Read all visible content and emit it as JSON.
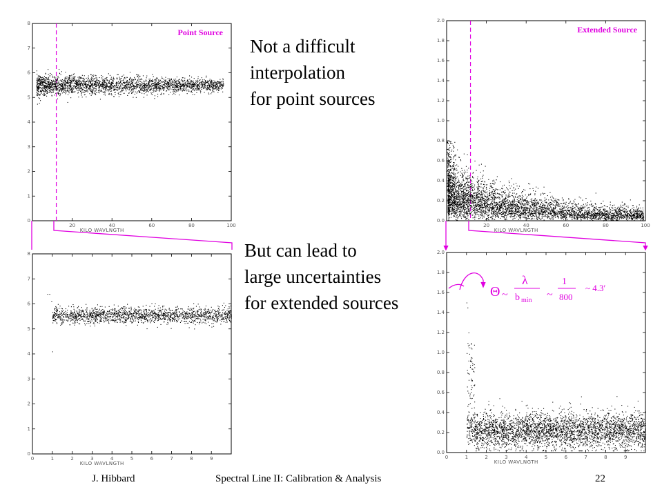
{
  "slide": {
    "text_top": [
      "Not a difficult",
      "interpolation",
      "for point sources"
    ],
    "text_bottom": [
      "But can lead to",
      "large uncertainties",
      "for extended sources"
    ]
  },
  "footer": {
    "author": "J. Hibbard",
    "title": "Spectral Line II: Calibration & Analysis",
    "page": "22"
  },
  "formula": {
    "theta": "Θ",
    "approx1": "~",
    "lambda": "λ",
    "bmin": "b",
    "bmin_sub": "min",
    "approx2": "~",
    "num": "1",
    "den": "800",
    "result": "~ 4.3′"
  },
  "colors": {
    "accent": "#e000e0",
    "points": "#000000"
  },
  "chart_data": [
    {
      "type": "scatter",
      "title": "Point Source",
      "xlabel": "KILO WAVLNGTH",
      "xticks": [
        "20",
        "40",
        "60",
        "80",
        "100"
      ],
      "yticks": [
        "0",
        "1",
        "2",
        "3",
        "4",
        "5",
        "6",
        "7",
        "8"
      ],
      "xlim": [
        0,
        100
      ],
      "ylim": [
        0,
        8
      ],
      "band": {
        "x": [
          2,
          96
        ],
        "center": 5.5,
        "spread": 0.22,
        "spread_end": 0.12
      },
      "marker_x": 12
    },
    {
      "type": "scatter",
      "title": "Extended Source",
      "xlabel": "KILO WAVLNGTH",
      "xticks": [
        "20",
        "40",
        "60",
        "80",
        "100"
      ],
      "yticks": [
        "0.0",
        "0.2",
        "0.4",
        "0.6",
        "0.8",
        "1.0",
        "1.2",
        "1.4",
        "1.6",
        "1.8",
        "2.0"
      ],
      "xlim": [
        0,
        100
      ],
      "ylim": [
        0,
        2
      ],
      "band": {
        "x": [
          0.5,
          99
        ],
        "peak": 0.35,
        "tail": 0.06,
        "decay": 40
      },
      "marker_x": 12
    },
    {
      "type": "scatter",
      "title": "",
      "xlabel": "KILO WAVLNGTH",
      "xticks": [
        "0",
        "1",
        "2",
        "3",
        "4",
        "5",
        "6",
        "7",
        "8",
        "9"
      ],
      "yticks": [
        "0",
        "1",
        "2",
        "3",
        "4",
        "5",
        "6",
        "7",
        "8"
      ],
      "xlim": [
        0,
        10
      ],
      "ylim": [
        0,
        8
      ],
      "band": {
        "x": [
          1.0,
          10
        ],
        "center": 5.55,
        "spread": 0.15
      }
    },
    {
      "type": "scatter",
      "title": "",
      "xlabel": "KILO WAVLNGTH",
      "xticks": [
        "0",
        "1",
        "2",
        "3",
        "4",
        "5",
        "6",
        "7",
        "8",
        "9"
      ],
      "yticks": [
        "0.0",
        "0.2",
        "0.4",
        "0.6",
        "0.8",
        "1.0",
        "1.2",
        "1.4",
        "1.6",
        "1.8",
        "2.0"
      ],
      "xlim": [
        0,
        10
      ],
      "ylim": [
        0,
        2
      ],
      "band": {
        "x": [
          1.0,
          10
        ],
        "base": 0.22,
        "spread": 0.09,
        "spike": 1.0
      }
    }
  ]
}
